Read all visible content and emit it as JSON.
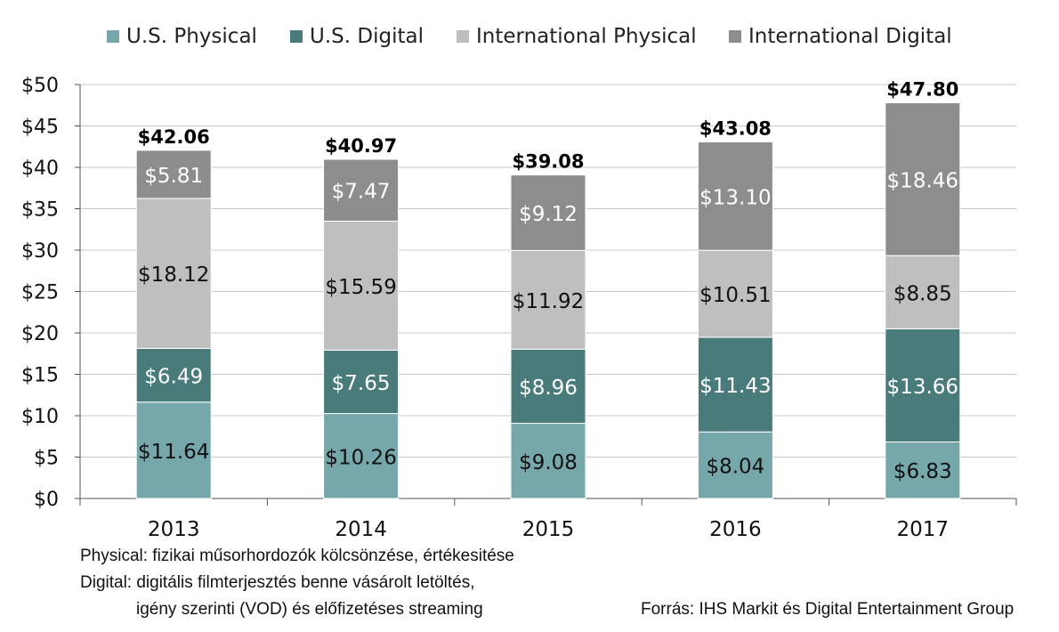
{
  "chart_data": {
    "type": "bar",
    "stacked": true,
    "categories": [
      "2013",
      "2014",
      "2015",
      "2016",
      "2017"
    ],
    "series": [
      {
        "name": "U.S. Physical",
        "color": "#75a7ab",
        "values": [
          11.64,
          10.26,
          9.08,
          8.04,
          6.83
        ]
      },
      {
        "name": "U.S. Digital",
        "color": "#4a7b7b",
        "values": [
          6.49,
          7.65,
          8.96,
          11.43,
          13.66
        ]
      },
      {
        "name": "International Physical",
        "color": "#bfbfbf",
        "values": [
          18.12,
          15.59,
          11.92,
          10.51,
          8.85
        ]
      },
      {
        "name": "International Digital",
        "color": "#8c8e8d",
        "values": [
          5.81,
          7.47,
          9.12,
          13.1,
          18.46
        ]
      }
    ],
    "segment_labels": [
      [
        "$11.64",
        "$10.26",
        "$9.08",
        "$8.04",
        "$6.83"
      ],
      [
        "$6.49",
        "$7.65",
        "$8.96",
        "$11.43",
        "$13.66"
      ],
      [
        "$18.12",
        "$15.59",
        "$11.92",
        "$10.51",
        "$8.85"
      ],
      [
        "$5.81",
        "$7.47",
        "$9.12",
        "$13.10",
        "$18.46"
      ]
    ],
    "label_colors": [
      "#111111",
      "#ffffff",
      "#111111",
      "#ffffff"
    ],
    "totals": [
      42.06,
      40.97,
      39.08,
      43.08,
      47.8
    ],
    "total_labels": [
      "$42.06",
      "$40.97",
      "$39.08",
      "$43.08",
      "$47.80"
    ],
    "y_ticks": [
      0,
      5,
      10,
      15,
      20,
      25,
      30,
      35,
      40,
      45,
      50
    ],
    "y_tick_labels": [
      "$0",
      "$5",
      "$10",
      "$15",
      "$20",
      "$25",
      "$30",
      "$35",
      "$40",
      "$45",
      "$50"
    ],
    "ylim": [
      0,
      50
    ],
    "grid": true,
    "legend_position": "top"
  },
  "notes": {
    "physical": "Physical: fizikai műsorhordozók kölcsönzése, értékesitése",
    "digital_1": "Digital: digitális filmterjesztés benne vásárolt letöltés,",
    "digital_2": "igény szerinti (VOD) és előfizetéses streaming",
    "source": "Forrás: IHS Markit és Digital Entertainment Group"
  }
}
